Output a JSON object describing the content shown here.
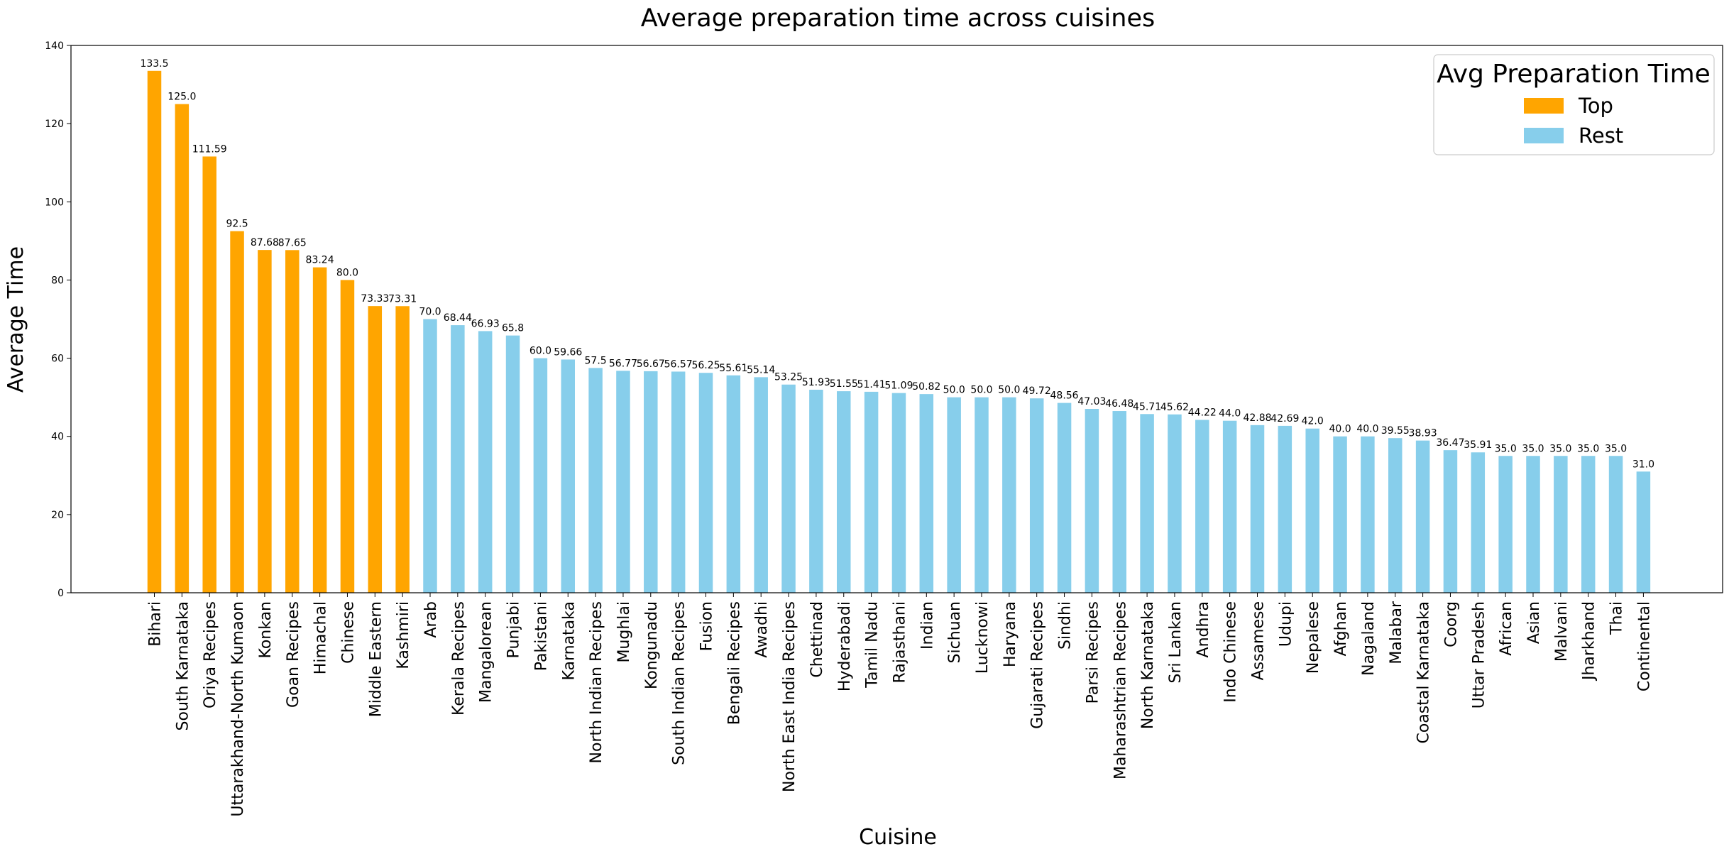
{
  "chart_data": {
    "type": "bar",
    "title": "Average preparation time across cuisines",
    "xlabel": "Cuisine",
    "ylabel": "Average Time",
    "ylim": [
      0,
      140
    ],
    "yticks": [
      0,
      20,
      40,
      60,
      80,
      100,
      120,
      140
    ],
    "grid": false,
    "legend": {
      "title": "Avg Preparation Time",
      "placement": "top-right",
      "entries": [
        {
          "name": "Top",
          "color": "#FFA500"
        },
        {
          "name": "Rest",
          "color": "#87CEEB"
        }
      ]
    },
    "colors": {
      "top": "#FFA500",
      "rest": "#87CEEB"
    },
    "top_count": 10,
    "categories": [
      "Bihari",
      "South Karnataka",
      "Oriya Recipes",
      "Uttarakhand-North Kumaon",
      "Konkan",
      "Goan Recipes",
      "Himachal",
      "Chinese",
      "Middle Eastern",
      "Kashmiri",
      "Arab",
      "Kerala Recipes",
      "Mangalorean",
      "Punjabi",
      "Pakistani",
      "Karnataka",
      "North Indian Recipes",
      "Mughlai",
      "Kongunadu",
      "South Indian Recipes",
      "Fusion",
      "Bengali Recipes",
      "Awadhi",
      "North East India Recipes",
      "Chettinad",
      "Hyderabadi",
      "Tamil Nadu",
      "Rajasthani",
      "Indian",
      "Sichuan",
      "Lucknowi",
      "Haryana",
      "Gujarati Recipes",
      "Sindhi",
      "Parsi Recipes",
      "Maharashtrian Recipes",
      "North Karnataka",
      "Sri Lankan",
      "Andhra",
      "Indo Chinese",
      "Assamese",
      "Udupi",
      "Nepalese",
      "Afghan",
      "Nagaland",
      "Malabar",
      "Coastal Karnataka",
      "Coorg",
      "Uttar Pradesh",
      "African",
      "Asian",
      "Malvani",
      "Jharkhand",
      "Thai",
      "Continental"
    ],
    "values": [
      133.5,
      125.0,
      111.59,
      92.5,
      87.68,
      87.65,
      83.24,
      80.0,
      73.33,
      73.31,
      70.0,
      68.44,
      66.93,
      65.8,
      60.0,
      59.66,
      57.5,
      56.77,
      56.67,
      56.57,
      56.25,
      55.61,
      55.14,
      53.25,
      51.93,
      51.55,
      51.41,
      51.09,
      50.82,
      50.0,
      50.0,
      50.0,
      49.72,
      48.56,
      47.03,
      46.48,
      45.71,
      45.62,
      44.22,
      44.0,
      42.88,
      42.69,
      42.0,
      40.0,
      40.0,
      39.55,
      38.93,
      36.47,
      35.91,
      35.0,
      35.0,
      35.0,
      35.0,
      35.0,
      31.0
    ],
    "value_labels": [
      "133.5",
      "125.0",
      "111.59",
      "92.5",
      "87.68",
      "87.65",
      "83.24",
      "80.0",
      "73.33",
      "73.31",
      "70.0",
      "68.44",
      "66.93",
      "65.8",
      "60.0",
      "59.66",
      "57.5",
      "56.77",
      "56.67",
      "56.57",
      "56.25",
      "55.61",
      "55.14",
      "53.25",
      "51.93",
      "51.55",
      "51.41",
      "51.09",
      "50.82",
      "50.0",
      "50.0",
      "50.0",
      "49.72",
      "48.56",
      "47.03",
      "46.48",
      "45.71",
      "45.62",
      "44.22",
      "44.0",
      "42.88",
      "42.69",
      "42.0",
      "40.0",
      "40.0",
      "39.55",
      "38.93",
      "36.47",
      "35.91",
      "35.0",
      "35.0",
      "35.0",
      "35.0",
      "35.0",
      "31.0"
    ]
  }
}
